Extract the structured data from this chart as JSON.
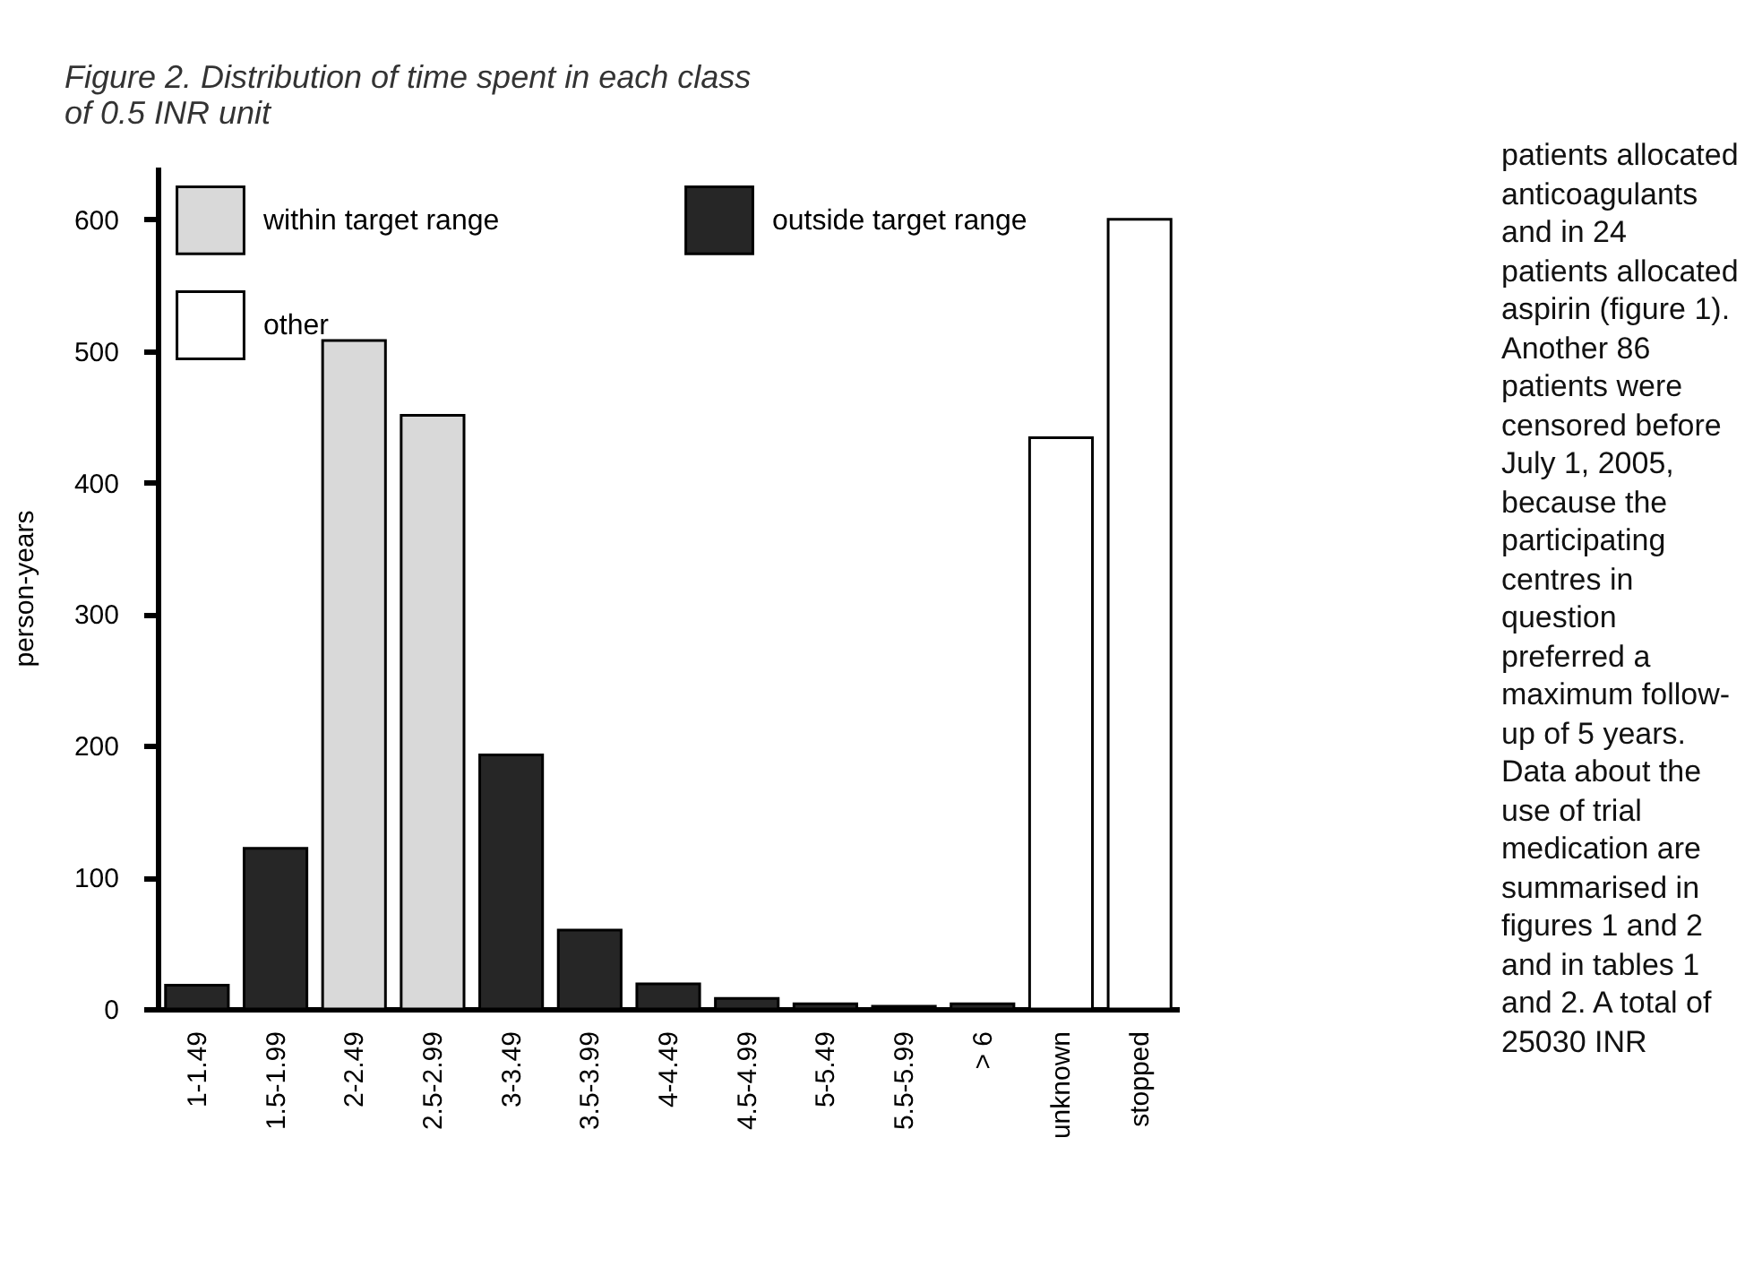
{
  "chart_data": {
    "type": "bar",
    "title": "Figure 2. Distribution of time spent in each class of 0.5 INR unit",
    "ylabel": "person-years",
    "categories": [
      "1-1.49",
      "1.5-1.99",
      "2-2.49",
      "2.5-2.99",
      "3-3.49",
      "3.5-3.99",
      "4-4.49",
      "4.5-4.99",
      "5-5.49",
      "5.5-5.99",
      "> 6",
      "unknown",
      "stopped"
    ],
    "series": [
      {
        "name": "within target range",
        "color": "#d9d9d9",
        "values": [
          null,
          null,
          508,
          451,
          null,
          null,
          null,
          null,
          null,
          null,
          null,
          null,
          null
        ]
      },
      {
        "name": "outside target range",
        "color": "#262626",
        "values": [
          18,
          122,
          null,
          null,
          193,
          60,
          19,
          8,
          4,
          2,
          4,
          null,
          null
        ]
      },
      {
        "name": "other",
        "color": "#ffffff",
        "values": [
          null,
          null,
          null,
          null,
          null,
          null,
          null,
          null,
          null,
          null,
          null,
          434,
          600
        ]
      }
    ],
    "ylim": [
      0,
      640
    ],
    "yticks": [
      0,
      100,
      200,
      300,
      400,
      500,
      600
    ],
    "grid": false,
    "legend": "top left",
    "annotations": [
      "patients allocated anticoagulants and in 24 patients allocated aspirin (figure 1). Another 86 patients were censored before July 1, 2005, because the participating centres in question preferred a maximum follow-up of 5 years. Data about the use of trial medication are summarised in figures 1 and 2 and in tables 1 and 2. A total of 25030 INR"
    ]
  }
}
